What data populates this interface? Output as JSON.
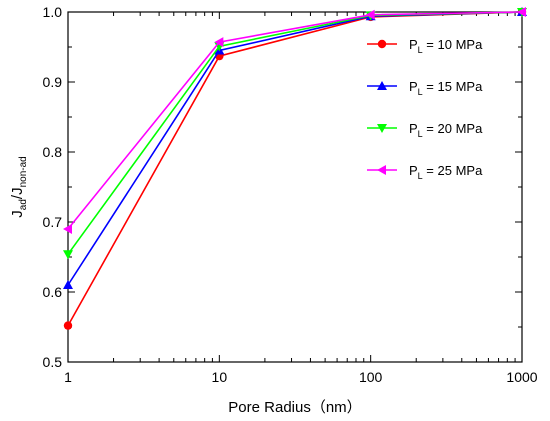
{
  "chart_data": {
    "type": "line",
    "xlabel": "Pore Radius（nm）",
    "ylabel": {
      "main": "J",
      "sub1": "ad",
      "sep": "/J",
      "sub2": "non-ad"
    },
    "x_scale": "log",
    "xlim": [
      1,
      1000
    ],
    "ylim": [
      0.5,
      1.0
    ],
    "x": [
      1,
      10,
      100,
      1000
    ],
    "x_tick_labels": [
      "1",
      "10",
      "100",
      "1000"
    ],
    "y_ticks": [
      0.5,
      0.6,
      0.7,
      0.8,
      0.9,
      1.0
    ],
    "y_tick_labels": [
      "0.5",
      "0.6",
      "0.7",
      "0.8",
      "0.9",
      "1.0"
    ],
    "grid": false,
    "legend_position": "top-right",
    "series": [
      {
        "name": "P_L = 10 MPa",
        "label": {
          "p": "P",
          "sub": "L",
          "rest": " = 10 MPa"
        },
        "color": "#ff0000",
        "marker": "circle",
        "values": [
          0.552,
          0.937,
          0.993,
          1.0
        ]
      },
      {
        "name": "P_L = 15 MPa",
        "label": {
          "p": "P",
          "sub": "L",
          "rest": " = 15 MPa"
        },
        "color": "#0000ff",
        "marker": "triangle-up",
        "values": [
          0.61,
          0.945,
          0.994,
          1.0
        ]
      },
      {
        "name": "P_L = 20 MPa",
        "label": {
          "p": "P",
          "sub": "L",
          "rest": " = 20 MPa"
        },
        "color": "#00ff00",
        "marker": "triangle-down",
        "values": [
          0.654,
          0.951,
          0.995,
          1.0
        ]
      },
      {
        "name": "P_L = 25 MPa",
        "label": {
          "p": "P",
          "sub": "L",
          "rest": " = 25 MPa"
        },
        "color": "#ff00ff",
        "marker": "triangle-left",
        "values": [
          0.69,
          0.957,
          0.996,
          1.0
        ]
      }
    ]
  }
}
